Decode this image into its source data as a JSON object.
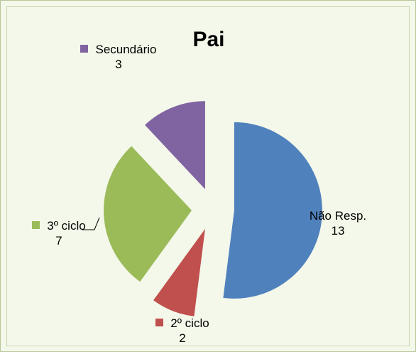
{
  "chart_data": {
    "type": "pie",
    "title": "Pai",
    "categories": [
      "Não Resp.",
      "2º ciclo",
      "3º ciclo",
      "Secundário"
    ],
    "values": [
      13,
      2,
      7,
      3
    ],
    "colors": [
      "#4f81bd",
      "#c0504d",
      "#9bbb59",
      "#8064a2"
    ]
  }
}
